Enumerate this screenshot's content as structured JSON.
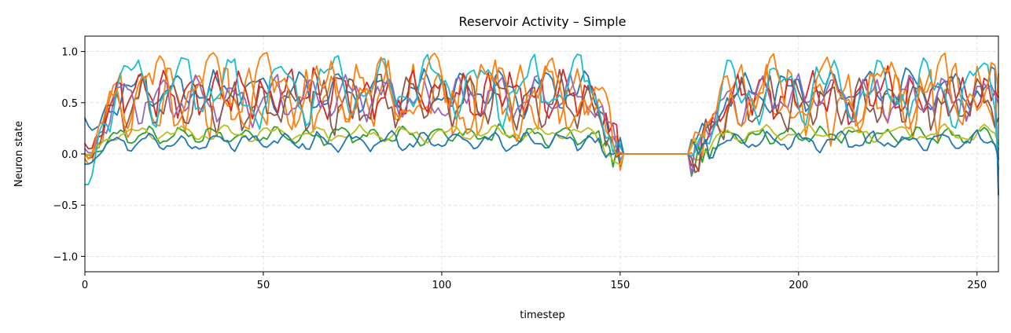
{
  "chart_data": {
    "type": "line",
    "title": "Reservoir Activity – Simple",
    "xlabel": "timestep",
    "ylabel": "Neuron state",
    "xlim": [
      0,
      256
    ],
    "ylim": [
      -1.15,
      1.15
    ],
    "xticks": [
      0,
      50,
      100,
      150,
      200,
      250
    ],
    "xtick_labels": [
      "0",
      "50",
      "100",
      "150",
      "200",
      "250"
    ],
    "yticks": [
      1.0,
      0.5,
      0.0,
      -0.5,
      -1.0
    ],
    "ytick_labels": [
      "1.0",
      "0.5",
      "0.0",
      "−0.5",
      "−1.0"
    ],
    "grid": true,
    "legend": "none",
    "n_points": 257,
    "flat_interval": [
      150,
      170
    ],
    "series": [
      {
        "color": "#1f77b4",
        "base": 0.62,
        "amp": 0.22,
        "freq": 0.55,
        "phase": 0.3,
        "seed": 11,
        "start": 0.35,
        "end": -0.4
      },
      {
        "color": "#ff7f0e",
        "base": 0.55,
        "amp": 0.42,
        "freq": 0.83,
        "phase": 1.1,
        "seed": 23,
        "start": -0.05,
        "end": 0.78
      },
      {
        "color": "#2ca02c",
        "base": 0.18,
        "amp": 0.1,
        "freq": 0.7,
        "phase": 2.0,
        "seed": 37,
        "start": 0.0,
        "end": 0.05
      },
      {
        "color": "#d62728",
        "base": 0.58,
        "amp": 0.3,
        "freq": 0.9,
        "phase": 0.6,
        "seed": 41,
        "start": 0.1,
        "end": 0.55
      },
      {
        "color": "#9467bd",
        "base": 0.55,
        "amp": 0.25,
        "freq": 0.6,
        "phase": 1.7,
        "seed": 53,
        "start": 0.05,
        "end": 0.5
      },
      {
        "color": "#8c564b",
        "base": 0.5,
        "amp": 0.3,
        "freq": 0.75,
        "phase": 2.6,
        "seed": 67,
        "start": 0.0,
        "end": 0.35
      },
      {
        "color": "#bcbd22",
        "base": 0.2,
        "amp": 0.08,
        "freq": 0.5,
        "phase": 0.9,
        "seed": 71,
        "start": 0.0,
        "end": 0.1
      },
      {
        "color": "#17becf",
        "base": 0.65,
        "amp": 0.35,
        "freq": 0.45,
        "phase": 2.2,
        "seed": 83,
        "start": -0.3,
        "end": -0.15
      },
      {
        "color": "#1f77b4",
        "base": 0.12,
        "amp": 0.1,
        "freq": 0.65,
        "phase": 3.0,
        "seed": 97,
        "start": -0.1,
        "end": -0.05
      },
      {
        "color": "#ff7f0e",
        "base": 0.6,
        "amp": 0.4,
        "freq": 0.4,
        "phase": 0.2,
        "seed": 103,
        "start": 0.0,
        "end": 0.6
      }
    ]
  }
}
